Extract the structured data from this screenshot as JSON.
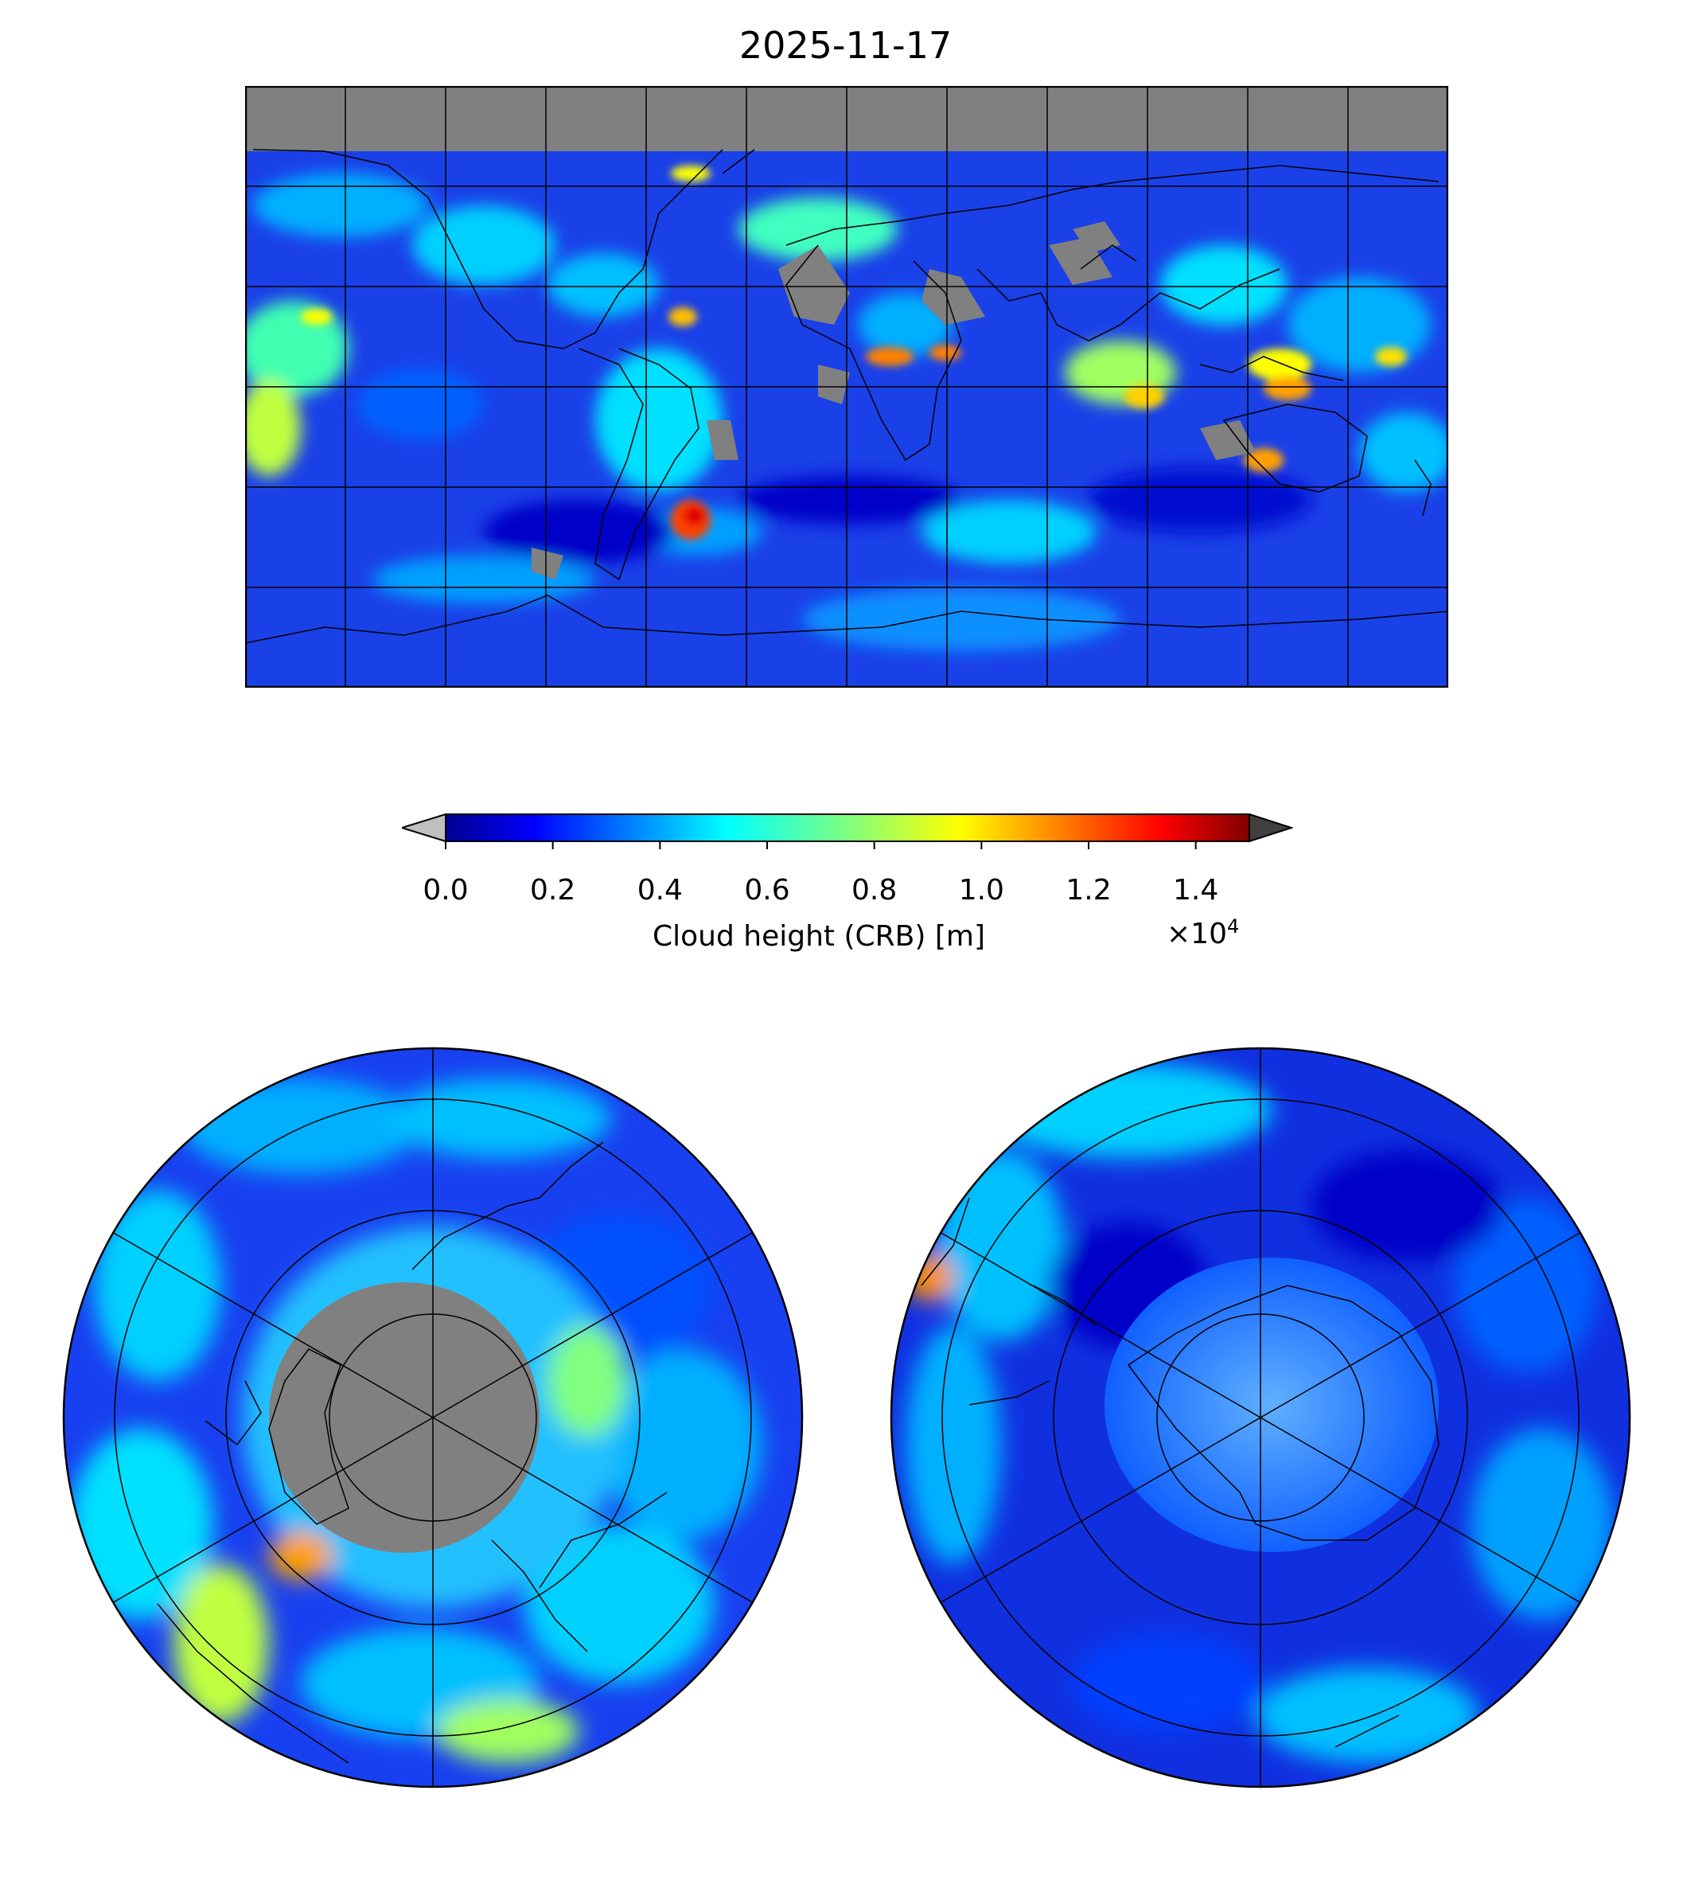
{
  "title": "2025-11-17",
  "colorbar": {
    "label": "Cloud height (CRB) [m]",
    "ticks": [
      "0.0",
      "0.2",
      "0.4",
      "0.6",
      "0.8",
      "1.0",
      "1.2",
      "1.4"
    ],
    "tick_values": [
      0.0,
      0.2,
      0.4,
      0.6,
      0.8,
      1.0,
      1.2,
      1.4
    ],
    "range": [
      0.0,
      1.5
    ],
    "multiplier_base": "×10",
    "multiplier_exp": "4",
    "colormap": "jet",
    "extend_low_color": "#bfbfbf",
    "extend_high_color": "#404040"
  },
  "colors": {
    "missing": "#808080",
    "coastline": "#000000",
    "deep_blue": "#0000cc",
    "blue": "#0030ff",
    "light_blue": "#00a0ff",
    "cyan": "#00e0ff",
    "yellow": "#ffff00",
    "orange": "#ff8000",
    "red": "#ff2000"
  },
  "maps": {
    "global": {
      "projection": "plate-carree",
      "lon_lines": 12,
      "lat_lines": 6
    },
    "north_polar": {
      "projection": "north-polar-stereographic",
      "pole_no_data": true
    },
    "south_polar": {
      "projection": "south-polar-stereographic"
    }
  }
}
